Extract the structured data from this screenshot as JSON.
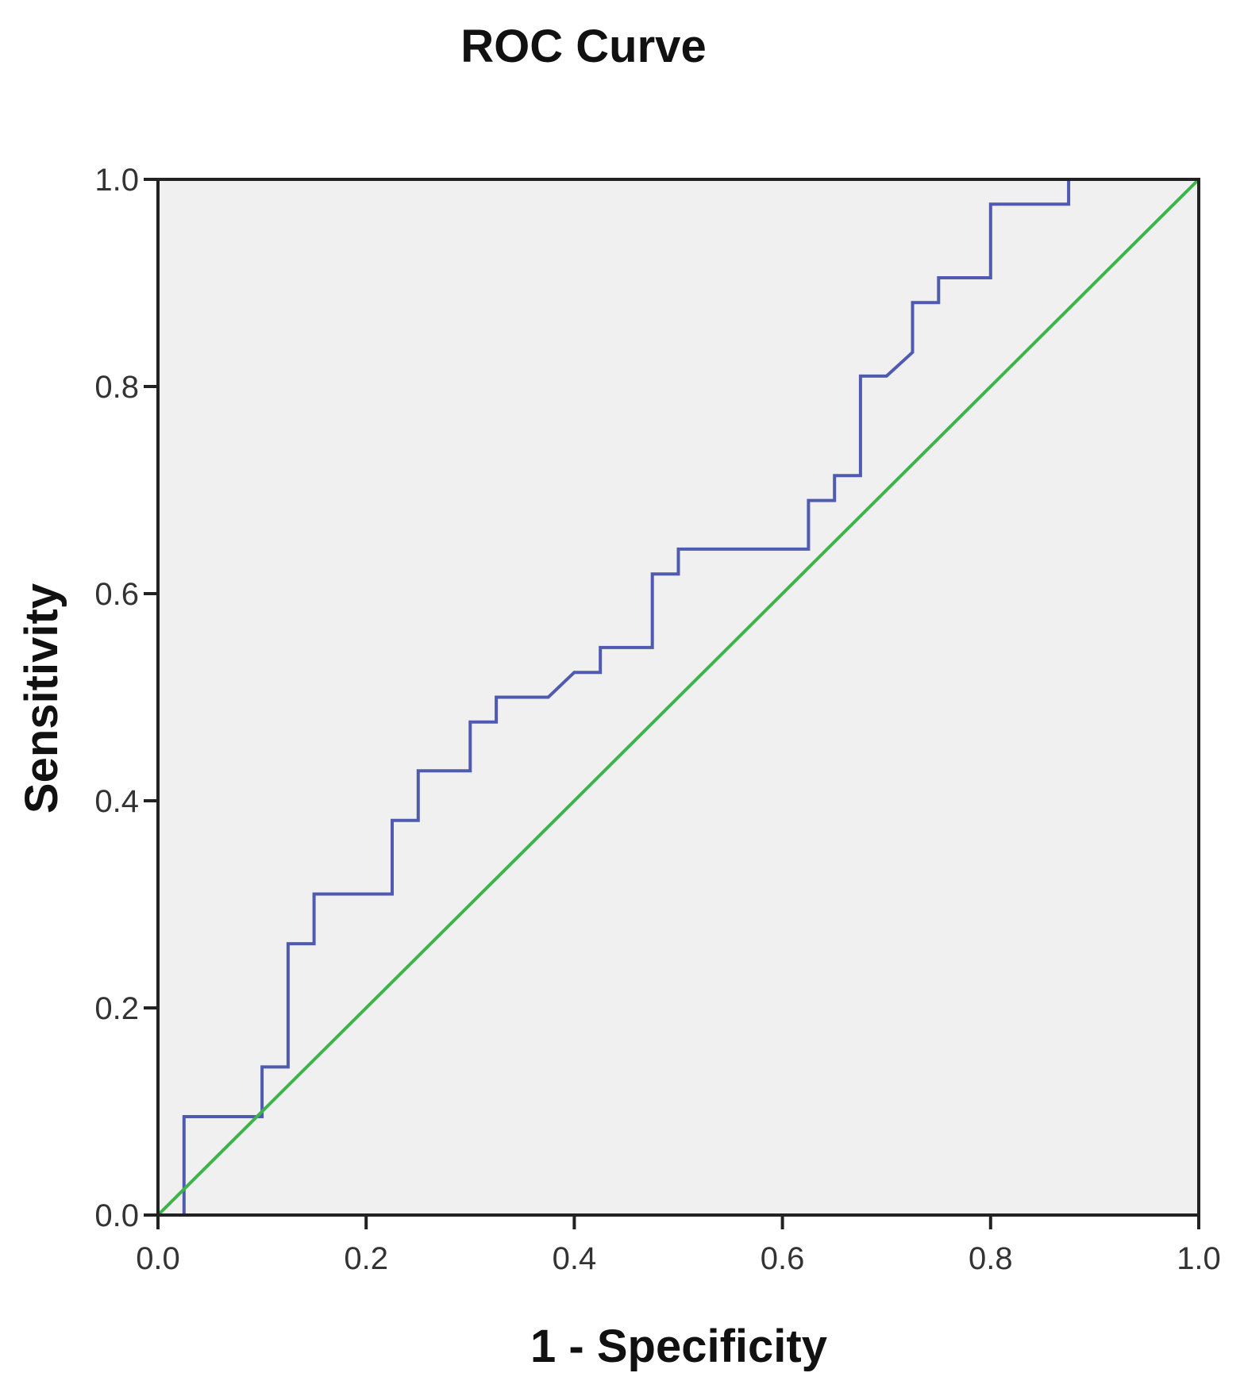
{
  "chart_data": {
    "type": "line",
    "title": "ROC Curve",
    "xlabel": "1 - Specificity",
    "ylabel": "Sensitivity",
    "xlim": [
      0,
      1
    ],
    "ylim": [
      0,
      1
    ],
    "x_ticks": [
      "0.0",
      "0.2",
      "0.4",
      "0.6",
      "0.8",
      "1.0"
    ],
    "y_ticks": [
      "0.0",
      "0.2",
      "0.4",
      "0.6",
      "0.8",
      "1.0"
    ],
    "grid": false,
    "colors": {
      "plot_background": "#f0f0f0",
      "roc": "#4f5bb0",
      "reference": "#3cb44b",
      "frame": "#222222"
    },
    "series": [
      {
        "x": [
          0,
          0.025,
          0.025,
          0.1,
          0.1,
          0.125,
          0.125,
          0.15,
          0.15,
          0.225,
          0.225,
          0.25,
          0.25,
          0.3,
          0.3,
          0.325,
          0.325,
          0.375,
          0.4,
          0.425,
          0.425,
          0.475,
          0.475,
          0.5,
          0.5,
          0.625,
          0.625,
          0.65,
          0.65,
          0.675,
          0.675,
          0.7,
          0.725,
          0.725,
          0.75,
          0.75,
          0.8,
          0.8,
          0.875,
          0.875,
          1.0
        ],
        "y": [
          0,
          0,
          0.095,
          0.095,
          0.143,
          0.143,
          0.262,
          0.262,
          0.31,
          0.31,
          0.381,
          0.381,
          0.429,
          0.429,
          0.476,
          0.476,
          0.5,
          0.5,
          0.524,
          0.524,
          0.548,
          0.548,
          0.619,
          0.619,
          0.643,
          0.643,
          0.69,
          0.69,
          0.714,
          0.714,
          0.81,
          0.81,
          0.833,
          0.881,
          0.881,
          0.905,
          0.905,
          0.976,
          0.976,
          1.0,
          1.0
        ]
      },
      {
        "x": [
          0,
          1
        ],
        "y": [
          0,
          1
        ]
      }
    ]
  }
}
